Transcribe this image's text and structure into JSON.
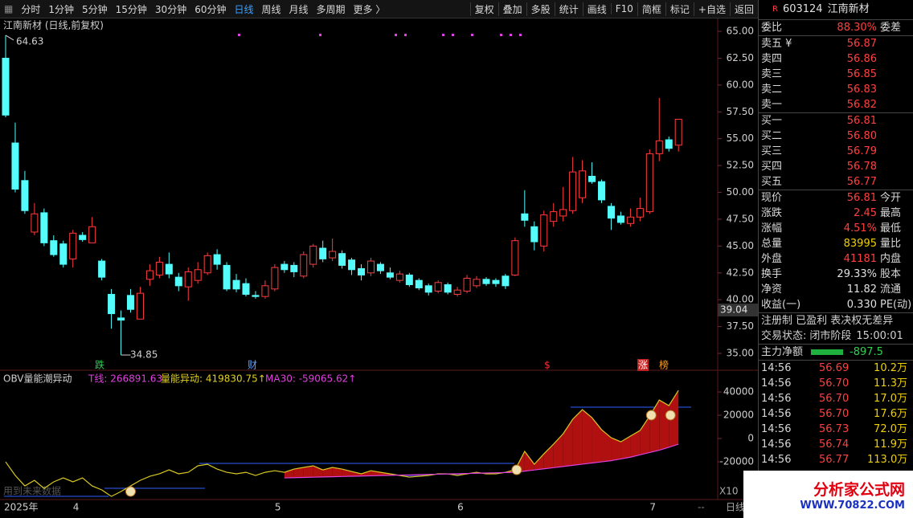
{
  "toolbar": {
    "left": [
      "分时",
      "1分钟",
      "5分钟",
      "15分钟",
      "30分钟",
      "60分钟",
      "日线",
      "周线",
      "月线",
      "多周期",
      "更多 〉"
    ],
    "selected": 6,
    "right": [
      "复权",
      "叠加",
      "多股",
      "统计",
      "画线",
      "F10",
      "简框",
      "标记",
      "+自选",
      "返回"
    ]
  },
  "main_chart": {
    "type": "candlestick",
    "title": "江南新材 (日线,前复权)",
    "open": [
      62.5,
      54.6,
      51.1,
      46.3,
      48.1,
      45.5,
      45.2,
      43.8,
      46.0,
      45.3,
      43.6,
      40.5,
      38.3,
      40.4,
      38.2,
      41.9,
      42.3,
      43.3,
      42.1,
      41.2,
      41.8,
      42.5,
      44.2,
      43.2,
      41.8,
      41.5,
      40.4,
      40.3,
      41.0,
      43.3,
      43.2,
      42.2,
      43.3,
      44.8,
      43.9,
      44.3,
      43.7,
      42.9,
      42.5,
      43.3,
      42.5,
      41.8,
      42.3,
      41.8,
      41.3,
      40.8,
      41.4,
      40.5,
      40.8,
      41.3,
      41.9,
      41.8,
      42.2,
      42.3,
      48.0,
      46.8,
      45.0,
      47.3,
      47.8,
      48.3,
      49.5,
      51.5,
      51.0,
      48.7,
      47.8,
      47.1,
      47.7,
      48.2,
      53.6,
      54.9,
      54.4
    ],
    "high": [
      64.63,
      56.5,
      52,
      49,
      48.5,
      46,
      45.5,
      46.5,
      46.3,
      47.7,
      43.8,
      41,
      39,
      41,
      41.2,
      43.3,
      44,
      44.4,
      42.5,
      43,
      43.5,
      44.4,
      44.7,
      43.5,
      42.4,
      42,
      40.8,
      41.8,
      43.3,
      43.6,
      43.5,
      44.5,
      45.2,
      45.5,
      45.7,
      44.6,
      43.9,
      43.3,
      43.9,
      43.5,
      43,
      42.7,
      42.5,
      42,
      41.5,
      41.8,
      41.6,
      41.2,
      42.3,
      42.2,
      42.1,
      42,
      42.4,
      45.8,
      50.2,
      47.3,
      48.3,
      49,
      50.5,
      53.3,
      53,
      52.8,
      51.2,
      49,
      48.2,
      48.5,
      49.5,
      54,
      58.8,
      55.2,
      56.81
    ],
    "low": [
      57,
      50,
      48,
      46,
      45,
      44,
      43,
      43,
      45.4,
      45.3,
      41.8,
      37.3,
      34.85,
      38.8,
      38.2,
      41.3,
      42,
      42,
      40.8,
      39.9,
      41.5,
      42.3,
      42.8,
      40.8,
      40.7,
      40.3,
      40.1,
      40.1,
      40.8,
      42.5,
      42.1,
      42,
      43,
      43.5,
      43.6,
      42.9,
      42.3,
      41.8,
      42.2,
      42.4,
      41.9,
      41.6,
      41.2,
      40.9,
      40.4,
      40.6,
      40.5,
      40.3,
      40.6,
      41.1,
      41.3,
      41.2,
      41,
      42.2,
      46.8,
      44.6,
      44.5,
      46.8,
      47.3,
      48,
      49,
      50.8,
      49,
      46.5,
      47,
      46.8,
      47.3,
      48,
      52.9,
      53.8,
      53.8
    ],
    "close": [
      57.2,
      50.3,
      48.3,
      48.0,
      45.3,
      44.2,
      43.3,
      46.2,
      45.6,
      46.8,
      42.1,
      38.7,
      38.1,
      39.1,
      40.6,
      42.7,
      43.5,
      42.4,
      41.3,
      42.6,
      42.8,
      44.1,
      43.3,
      41.0,
      41.0,
      40.5,
      40.3,
      41.3,
      43.0,
      42.8,
      42.6,
      44.2,
      45.0,
      43.8,
      44.5,
      43.2,
      42.8,
      42.3,
      43.6,
      42.7,
      42.1,
      42.4,
      41.4,
      41.1,
      40.7,
      41.6,
      40.7,
      40.9,
      42.0,
      41.9,
      41.5,
      41.5,
      41.3,
      45.5,
      47.4,
      45.4,
      47.9,
      48.2,
      48.4,
      51.9,
      52.0,
      51.0,
      49.3,
      47.6,
      47.2,
      47.7,
      48.5,
      53.6,
      54.8,
      54.1,
      56.81
    ],
    "up_color": "#ff3c3c",
    "down_color": "#54fcfc",
    "ylim": [
      33.88,
      66.05
    ],
    "yticks": [
      {
        "value": 65,
        "label": "65.00"
      },
      {
        "value": 62.5,
        "label": "62.50"
      },
      {
        "value": 60,
        "label": "60.00"
      },
      {
        "value": 57.5,
        "label": "57.50"
      },
      {
        "value": 55,
        "label": "55.00"
      },
      {
        "value": 52.5,
        "label": "52.50"
      },
      {
        "value": 50,
        "label": "50.00"
      },
      {
        "value": 47.5,
        "label": "47.50"
      },
      {
        "value": 45,
        "label": "45.00"
      },
      {
        "value": 42.5,
        "label": "42.50"
      },
      {
        "value": 40,
        "label": "40.00"
      },
      {
        "value": 37.5,
        "label": "37.50"
      },
      {
        "value": 35,
        "label": "35.00"
      }
    ],
    "cursor_price": {
      "value": 39.04,
      "label": "39.04"
    },
    "high_label": "64.63",
    "low_label": "34.85",
    "markers": [
      "跌",
      "财",
      "$",
      "涨",
      "榜"
    ]
  },
  "indicator": {
    "type": "line",
    "title": "OBV量能潮异动",
    "legend": [
      "T线: 266891.63",
      "量能异动: 419830.75↑",
      "MA30: -59065.62↑"
    ],
    "series": [
      {
        "color": "#d8c820",
        "values": [
          -20000,
          -31700,
          -40700,
          -35900,
          -42800,
          -37200,
          -33800,
          -37200,
          -33800,
          -40700,
          -44100,
          -49700,
          -45500,
          -40700,
          -35900,
          -32400,
          -30300,
          -26900,
          -30300,
          -29000,
          -23400,
          -22100,
          -26200,
          -29000,
          -30300,
          -29000,
          -31700,
          -29000,
          -27600,
          -29000,
          -26200,
          -24800,
          -23400,
          -26900,
          -24800,
          -26200,
          -28300,
          -30300,
          -27600,
          -29000,
          -30300,
          -31700,
          -33100,
          -32400,
          -31700,
          -30300,
          -30300,
          -31700,
          -30300,
          -29000,
          -30300,
          -30300,
          -29000,
          -26900,
          -11000,
          -22100,
          -13100,
          -4800,
          4100,
          16600,
          24800,
          17900,
          7600,
          700,
          -2800,
          2100,
          6900,
          19300,
          33100,
          28300,
          41400
        ]
      },
      {
        "color": "#e040e0",
        "values": [
          null,
          null,
          null,
          null,
          null,
          null,
          null,
          null,
          null,
          null,
          null,
          null,
          null,
          null,
          null,
          null,
          null,
          null,
          null,
          null,
          null,
          null,
          null,
          null,
          null,
          null,
          null,
          null,
          null,
          -33800,
          -33600,
          -33400,
          -33200,
          -33000,
          -32800,
          -32600,
          -32400,
          -32200,
          -32000,
          -31800,
          -31600,
          -31400,
          -31200,
          -31000,
          -30800,
          -30600,
          -30400,
          -30200,
          -30000,
          -29800,
          -29600,
          -29400,
          -29200,
          -29000,
          -28000,
          -27000,
          -26000,
          -25000,
          -24000,
          -23000,
          -22000,
          -21000,
          -20000,
          -19000,
          -17500,
          -16000,
          -14000,
          -12000,
          -10000,
          -7500,
          -4800
        ]
      }
    ],
    "fill_up": "#b01010",
    "fill_down": "#2a2a9a",
    "ylim": [
      -51000,
      55900
    ],
    "yticks": [
      40000,
      20000,
      0,
      -20000
    ]
  },
  "x_axis": {
    "labels": [
      "2025年",
      "4",
      "5",
      "6",
      "7"
    ],
    "dashes": "--",
    "period": "日线",
    "zoom": "X10",
    "note": "用到未来数据"
  },
  "quote": {
    "badge": "R",
    "code": "603124",
    "name": "江南新材",
    "wei": {
      "label": "委比",
      "value": "88.30%",
      "label2": "委差"
    },
    "asks": [
      [
        "卖五 ¥",
        "56.87"
      ],
      [
        "卖四",
        "56.86"
      ],
      [
        "卖三",
        "56.85"
      ],
      [
        "卖二",
        "56.83"
      ],
      [
        "卖一",
        "56.82"
      ]
    ],
    "bids": [
      [
        "买一",
        "56.81"
      ],
      [
        "买二",
        "56.80"
      ],
      [
        "买三",
        "56.79"
      ],
      [
        "买四",
        "56.78"
      ],
      [
        "买五",
        "56.77"
      ]
    ],
    "stats": [
      {
        "label": "现价",
        "value": "56.81",
        "label2": "今开",
        "color": "#ff4040"
      },
      {
        "label": "涨跌",
        "value": "2.45",
        "label2": "最高",
        "color": "#ff4040"
      },
      {
        "label": "涨幅",
        "value": "4.51%",
        "label2": "最低",
        "color": "#ff4040"
      },
      {
        "label": "总量",
        "value": "83995",
        "label2": "量比",
        "color": "#f0d000"
      },
      {
        "label": "外盘",
        "value": "41181",
        "label2": "内盘",
        "color": "#ff4040"
      },
      {
        "label": "换手",
        "value": "29.33%",
        "label2": "股本",
        "color": "#e0e0e0"
      },
      {
        "label": "净资",
        "value": "11.82",
        "label2": "流通",
        "color": "#e0e0e0"
      },
      {
        "label": "收益(一)",
        "value": "0.330",
        "label2": "PE(动)",
        "color": "#e0e0e0"
      }
    ],
    "tags": "注册制 已盈利 表决权无差异",
    "status": [
      "交易状态:",
      "闭市阶段",
      "15:00:01"
    ],
    "flow": {
      "label": "主力净额",
      "value": "-897.5"
    },
    "trades": [
      [
        "14:56",
        "56.69",
        "10.2万"
      ],
      [
        "14:56",
        "56.70",
        "11.3万"
      ],
      [
        "14:56",
        "56.70",
        "17.0万"
      ],
      [
        "14:56",
        "56.70",
        "17.6万"
      ],
      [
        "14:56",
        "56.73",
        "72.0万"
      ],
      [
        "14:56",
        "56.74",
        "11.9万"
      ],
      [
        "14:56",
        "56.77",
        "113.0万"
      ]
    ]
  },
  "logo": {
    "name": "分析家公式网",
    "url": "WWW.70822.COM"
  }
}
